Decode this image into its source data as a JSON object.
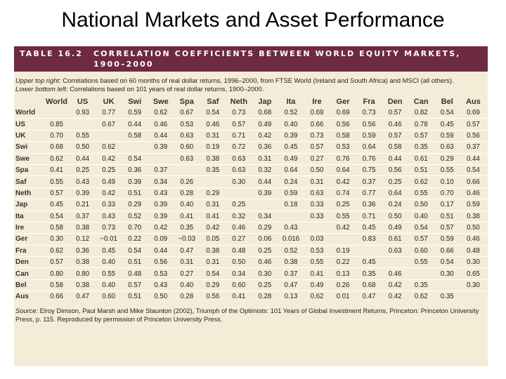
{
  "slide": {
    "title": "National Markets and Asset Performance"
  },
  "table": {
    "number": "TABLE 16.2",
    "caption": "CORRELATION COEFFICIENTS BETWEEN WORLD EQUITY MARKETS,\n1900–2000",
    "note_upper_label": "Upper top right:",
    "note_upper_text": " Correlations based on 60 months of real dollar returns, 1996–2000, from FTSE World (Ireland and South Africa) and MSCI (all others).",
    "note_lower_label": "Lower bottom left:",
    "note_lower_text": " Correlations based on 101 years of real dollar returns, 1900–2000.",
    "columns": [
      "World",
      "US",
      "UK",
      "Swi",
      "Swe",
      "Spa",
      "Saf",
      "Neth",
      "Jap",
      "Ita",
      "Ire",
      "Ger",
      "Fra",
      "Den",
      "Can",
      "Bel",
      "Aus"
    ],
    "rows": [
      {
        "label": "World",
        "cells": [
          "",
          "0.93",
          "0.77",
          "0.59",
          "0.62",
          "0.67",
          "0.54",
          "0.73",
          "0.68",
          "0.52",
          "0.69",
          "0.69",
          "0.73",
          "0.57",
          "0.82",
          "0.54",
          "0.69"
        ]
      },
      {
        "label": "US",
        "cells": [
          "0.85",
          "",
          "0.67",
          "0.44",
          "0.46",
          "0.53",
          "0.46",
          "0.57",
          "0.49",
          "0.40",
          "0.66",
          "0.56",
          "0.56",
          "0.46",
          "0.78",
          "0.45",
          "0.57"
        ]
      },
      {
        "label": "UK",
        "cells": [
          "0.70",
          "0.55",
          "",
          "0.58",
          "0.44",
          "0.63",
          "0.31",
          "0.71",
          "0.42",
          "0.39",
          "0.73",
          "0.58",
          "0.59",
          "0.57",
          "0.57",
          "0.59",
          "0.56"
        ]
      },
      {
        "label": "Swi",
        "cells": [
          "0.68",
          "0.50",
          "0.62",
          "",
          "0.39",
          "0.60",
          "0.19",
          "0.72",
          "0.36",
          "0.45",
          "0.57",
          "0.53",
          "0.64",
          "0.58",
          "0.35",
          "0.63",
          "0.37"
        ]
      },
      {
        "label": "Swe",
        "cells": [
          "0.62",
          "0.44",
          "0.42",
          "0.54",
          "",
          "0.63",
          "0.38",
          "0.63",
          "0.31",
          "0.49",
          "0.27",
          "0.76",
          "0.76",
          "0.44",
          "0.61",
          "0.29",
          "0.44"
        ]
      },
      {
        "label": "Spa",
        "cells": [
          "0.41",
          "0.25",
          "0.25",
          "0.36",
          "0.37",
          "",
          "0.35",
          "0.63",
          "0.32",
          "0.64",
          "0.50",
          "0.64",
          "0.75",
          "0.56",
          "0.51",
          "0.55",
          "0.54"
        ]
      },
      {
        "label": "Saf",
        "cells": [
          "0.55",
          "0.43",
          "0.49",
          "0.39",
          "0.34",
          "0.26",
          "",
          "0.30",
          "0.44",
          "0.24",
          "0.31",
          "0.42",
          "0.37",
          "0.25",
          "0.62",
          "0.10",
          "0.66"
        ]
      },
      {
        "label": "Neth",
        "cells": [
          "0.57",
          "0.39",
          "0.42",
          "0.51",
          "0.43",
          "0.28",
          "0.29",
          "",
          "0.39",
          "0.59",
          "0.63",
          "0.74",
          "0.77",
          "0.64",
          "0.55",
          "0.70",
          "0.46"
        ]
      },
      {
        "label": "Jap",
        "cells": [
          "0.45",
          "0.21",
          "0.33",
          "0.29",
          "0.39",
          "0.40",
          "0.31",
          "0.25",
          "",
          "0.18",
          "0.33",
          "0.25",
          "0.36",
          "0.24",
          "0.50",
          "0.17",
          "0.59"
        ]
      },
      {
        "label": "Ita",
        "cells": [
          "0.54",
          "0.37",
          "0.43",
          "0.52",
          "0.39",
          "0.41",
          "0.41",
          "0.32",
          "0.34",
          "",
          "0.33",
          "0.55",
          "0.71",
          "0.50",
          "0.40",
          "0.51",
          "0.38"
        ]
      },
      {
        "label": "Ire",
        "cells": [
          "0.58",
          "0.38",
          "0.73",
          "0.70",
          "0.42",
          "0.35",
          "0.42",
          "0.46",
          "0.29",
          "0.43",
          "",
          "0.42",
          "0.45",
          "0.49",
          "0.54",
          "0.57",
          "0.50"
        ]
      },
      {
        "label": "Ger",
        "cells": [
          "0.30",
          "0.12",
          "-0.01",
          "0.22",
          "0.09",
          "-0.03",
          "0.05",
          "0.27",
          "0.06",
          "0.016",
          "0.03",
          "",
          "0.83",
          "0.61",
          "0.57",
          "0.59",
          "0.46"
        ]
      },
      {
        "label": "Fra",
        "cells": [
          "0.62",
          "0.36",
          "0.45",
          "0.54",
          "0.44",
          "0.47",
          "0.38",
          "0.48",
          "0.25",
          "0.52",
          "0.53",
          "0.19",
          "",
          "0.63",
          "0.60",
          "0.66",
          "0.48"
        ]
      },
      {
        "label": "Den",
        "cells": [
          "0.57",
          "0.38",
          "0.40",
          "0.51",
          "0.56",
          "0.31",
          "0.31",
          "0.50",
          "0.46",
          "0.38",
          "0.55",
          "0.22",
          "0.45",
          "",
          "0.55",
          "0.54",
          "0.30"
        ]
      },
      {
        "label": "Can",
        "cells": [
          "0.80",
          "0.80",
          "0.55",
          "0.48",
          "0.53",
          "0.27",
          "0.54",
          "0.34",
          "0.30",
          "0.37",
          "0.41",
          "0.13",
          "0.35",
          "0.46",
          "",
          "0.30",
          "0.65"
        ]
      },
      {
        "label": "Bel",
        "cells": [
          "0.58",
          "0.38",
          "0.40",
          "0.57",
          "0.43",
          "0.40",
          "0.29",
          "0.60",
          "0.25",
          "0.47",
          "0.49",
          "0.26",
          "0.68",
          "0.42",
          "0.35",
          "",
          "0.30"
        ]
      },
      {
        "label": "Aus",
        "cells": [
          "0.66",
          "0.47",
          "0.60",
          "0.51",
          "0.50",
          "0.28",
          "0.56",
          "0.41",
          "0.28",
          "0.13",
          "0.62",
          "0.01",
          "0.47",
          "0.42",
          "0.62",
          "0.35",
          ""
        ]
      }
    ],
    "source_label": "Source:",
    "source_text": " Elroy Dimson, Paul Marsh and Mike Staunton (2002), Triumph of the Optimists: 101 Years of Global Investment Returns, Princeton: Princeton University Press, p. 115. Reproduced by permission of Princeton University Press."
  },
  "colors": {
    "header_bg": "#6e2a41",
    "panel_bg": "#f5ecd8",
    "row_divider": "#ffffff"
  }
}
